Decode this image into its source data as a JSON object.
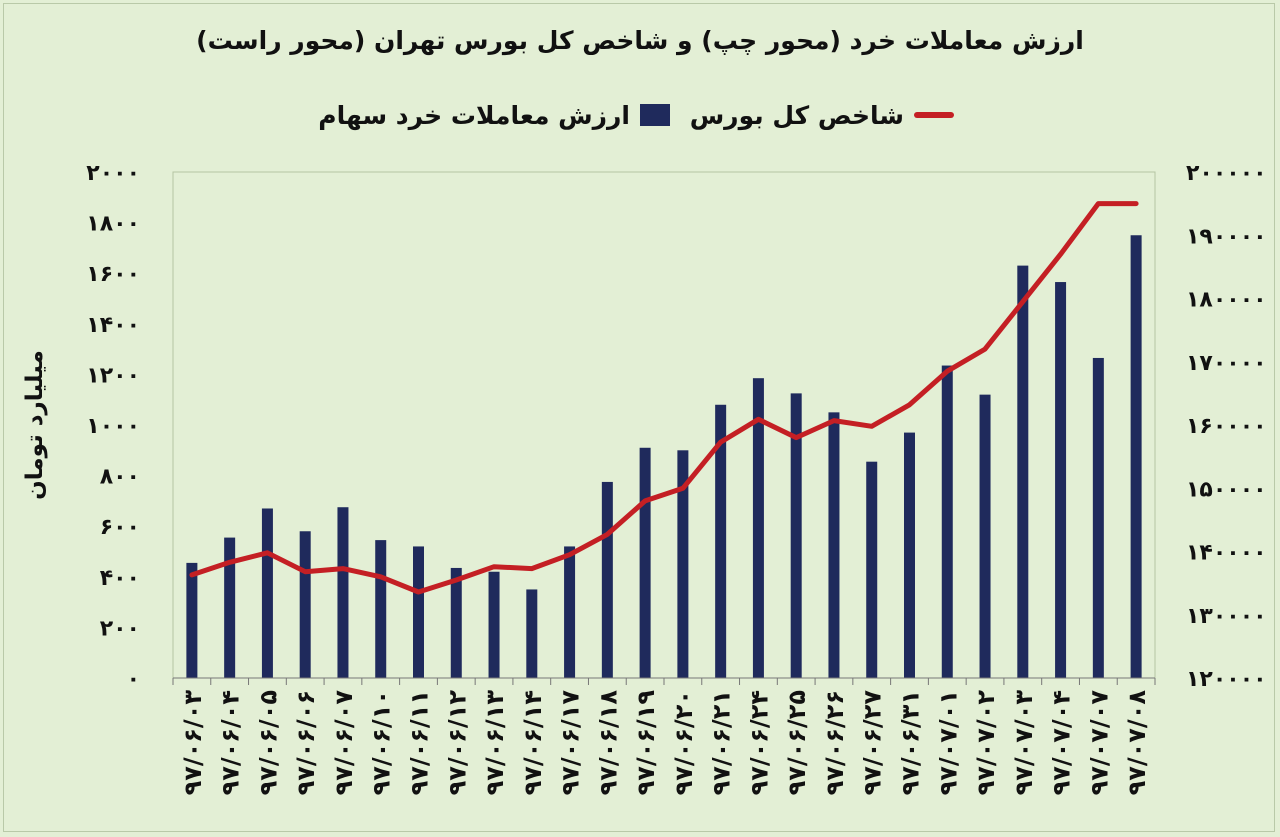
{
  "chart_data": {
    "type": "bar",
    "title": "ارزش معاملات خرد (محور چپ) و شاخص کل بورس تهران (محور راست)",
    "legend_placement": "top",
    "y_left_label": "میلیارد تومان",
    "y_left_lim": [
      0,
      2000
    ],
    "y_left_ticks": [
      "۰",
      "۲۰۰",
      "۴۰۰",
      "۶۰۰",
      "۸۰۰",
      "۱۰۰۰",
      "۱۲۰۰",
      "۱۴۰۰",
      "۱۶۰۰",
      "۱۸۰۰",
      "۲۰۰۰"
    ],
    "y_right_lim": [
      120000,
      200000
    ],
    "y_right_ticks": [
      "۱۲۰۰۰۰",
      "۱۳۰۰۰۰",
      "۱۴۰۰۰۰",
      "۱۵۰۰۰۰",
      "۱۶۰۰۰۰",
      "۱۷۰۰۰۰",
      "۱۸۰۰۰۰",
      "۱۹۰۰۰۰",
      "۲۰۰۰۰۰"
    ],
    "categories": [
      "۹۷/۰۶/۰۳",
      "۹۷/۰۶/۰۴",
      "۹۷/۰۶/۰۵",
      "۹۷/۰۶/۰۶",
      "۹۷/۰۶/۰۷",
      "۹۷/۰۶/۱۰",
      "۹۷/۰۶/۱۱",
      "۹۷/۰۶/۱۲",
      "۹۷/۰۶/۱۳",
      "۹۷/۰۶/۱۴",
      "۹۷/۰۶/۱۷",
      "۹۷/۰۶/۱۸",
      "۹۷/۰۶/۱۹",
      "۹۷/۰۶/۲۰",
      "۹۷/۰۶/۲۱",
      "۹۷/۰۶/۲۴",
      "۹۷/۰۶/۲۵",
      "۹۷/۰۶/۲۶",
      "۹۷/۰۶/۲۷",
      "۹۷/۰۶/۳۱",
      "۹۷/۰۷/۰۱",
      "۹۷/۰۷/۰۲",
      "۹۷/۰۷/۰۳",
      "۹۷/۰۷/۰۴",
      "۹۷/۰۷/۰۷",
      "۹۷/۰۷/۰۸"
    ],
    "series": [
      {
        "name": "ارزش معاملات خرد سهام",
        "type": "bar",
        "axis": "left",
        "color": "#1f2a5c",
        "values": [
          455,
          555,
          670,
          580,
          675,
          545,
          520,
          435,
          420,
          350,
          520,
          775,
          910,
          900,
          1080,
          1185,
          1125,
          1050,
          855,
          970,
          1235,
          1120,
          1630,
          1565,
          1265,
          1750
        ]
      },
      {
        "name": "شاخص کل بورس",
        "type": "line",
        "axis": "right",
        "color": "#c41f24",
        "values": [
          136300,
          138300,
          139800,
          136800,
          137300,
          136000,
          133600,
          135500,
          137600,
          137300,
          139500,
          142700,
          148000,
          150000,
          157300,
          160900,
          158000,
          160700,
          159800,
          163200,
          168500,
          172000,
          179500,
          187000,
          195000,
          195000
        ]
      }
    ]
  }
}
